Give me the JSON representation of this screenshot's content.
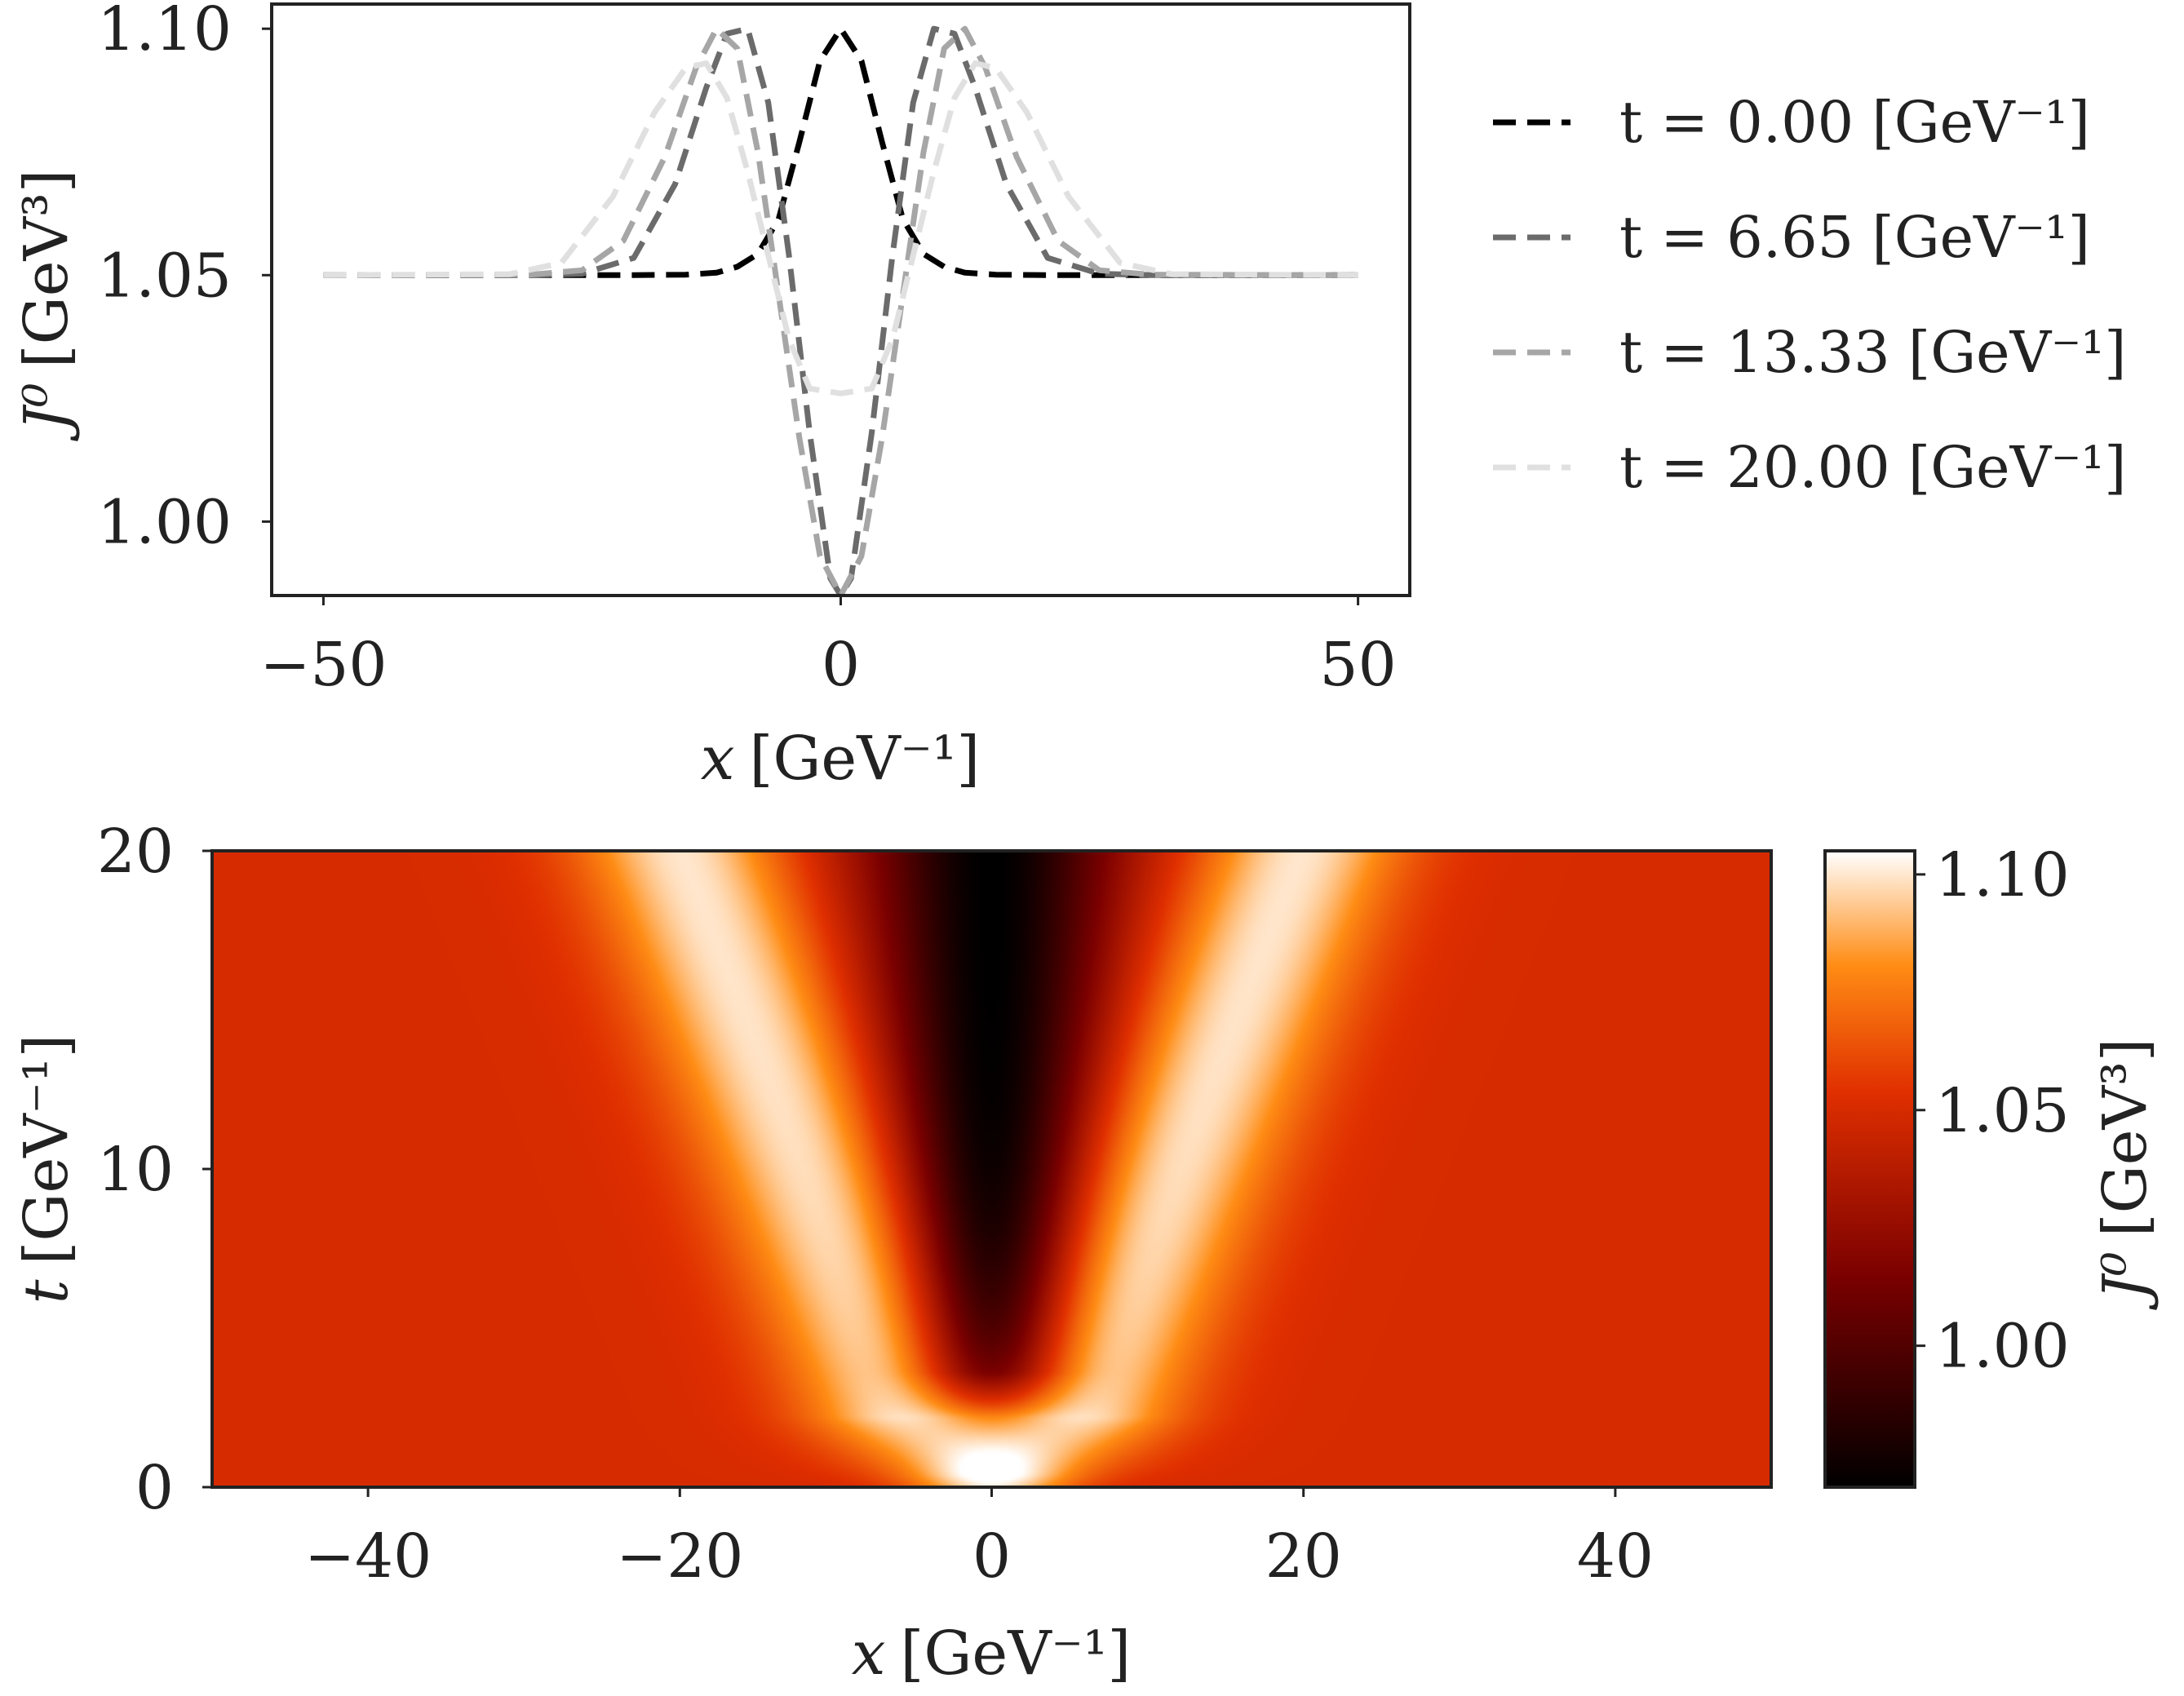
{
  "chart_data": [
    {
      "type": "line",
      "xlabel_var": "x",
      "xlabel_unit": "[GeV⁻¹]",
      "ylabel_var": "J⁰",
      "ylabel_unit": "[GeV³]",
      "xlim": [
        -55,
        55
      ],
      "ylim": [
        0.985,
        1.105
      ],
      "xticks": [
        -50,
        0,
        50
      ],
      "xtick_labels": [
        "−50",
        "0",
        "50"
      ],
      "yticks": [
        1.0,
        1.05,
        1.1
      ],
      "ytick_labels": [
        "1.00",
        "1.05",
        "1.10"
      ],
      "legend_position": "right",
      "grid": false,
      "series": [
        {
          "name": "t = 0.00 [GeV⁻¹]",
          "color": "#000000",
          "x": [
            -50,
            -30,
            -20,
            -15,
            -12,
            -10,
            -8,
            -6,
            -4,
            -2,
            0,
            2,
            4,
            6,
            8,
            10,
            12,
            15,
            20,
            30,
            50
          ],
          "y": [
            1.05,
            1.05,
            1.05,
            1.0501,
            1.0505,
            1.0517,
            1.0543,
            1.0614,
            1.077,
            1.0935,
            1.1,
            1.0935,
            1.077,
            1.0614,
            1.0543,
            1.0517,
            1.0505,
            1.0501,
            1.05,
            1.05,
            1.05
          ]
        },
        {
          "name": "t = 6.65 [GeV⁻¹]",
          "color": "#6b6b6b",
          "x": [
            -50,
            -30,
            -25,
            -20,
            -16,
            -13,
            -11,
            -9,
            -7,
            -5,
            -3,
            -1,
            0,
            1,
            3,
            5,
            7,
            9,
            11,
            13,
            16,
            20,
            25,
            30,
            50
          ],
          "y": [
            1.05,
            1.05,
            1.0503,
            1.0535,
            1.0685,
            1.088,
            1.099,
            1.1,
            1.085,
            1.054,
            1.018,
            0.9885,
            0.985,
            0.9885,
            1.018,
            1.054,
            1.085,
            1.1,
            1.099,
            1.088,
            1.0685,
            1.0535,
            1.0503,
            1.05,
            1.05
          ]
        },
        {
          "name": "t = 13.33 [GeV⁻¹]",
          "color": "#a6a6a6",
          "x": [
            -50,
            -30,
            -25,
            -21,
            -17,
            -14,
            -12,
            -10,
            -8,
            -6,
            -4,
            -2,
            0,
            2,
            4,
            6,
            8,
            10,
            12,
            14,
            17,
            21,
            25,
            30,
            50
          ],
          "y": [
            1.05,
            1.0501,
            1.051,
            1.057,
            1.074,
            1.092,
            1.1,
            1.096,
            1.075,
            1.046,
            1.017,
            0.993,
            0.985,
            0.993,
            1.017,
            1.046,
            1.075,
            1.096,
            1.1,
            1.092,
            1.074,
            1.057,
            1.051,
            1.0501,
            1.05
          ]
        },
        {
          "name": "t = 20.00 [GeV⁻¹]",
          "color": "#e0e0e0",
          "x": [
            -50,
            -32,
            -27,
            -22,
            -18,
            -15,
            -13,
            -11,
            -9,
            -7,
            -5,
            -3,
            0,
            3,
            5,
            7,
            9,
            11,
            13,
            15,
            18,
            22,
            27,
            32,
            50
          ],
          "y": [
            1.05,
            1.0502,
            1.0525,
            1.066,
            1.083,
            1.092,
            1.093,
            1.086,
            1.071,
            1.054,
            1.037,
            1.027,
            1.026,
            1.027,
            1.037,
            1.054,
            1.071,
            1.086,
            1.093,
            1.092,
            1.083,
            1.066,
            1.0525,
            1.0502,
            1.05
          ]
        }
      ]
    },
    {
      "type": "heatmap",
      "xlabel_var": "x",
      "xlabel_unit": "[GeV⁻¹]",
      "ylabel_var": "t",
      "ylabel_unit": "[GeV⁻¹]",
      "xlim": [
        -50,
        50
      ],
      "ylim": [
        0,
        20
      ],
      "xticks": [
        -40,
        -20,
        0,
        20,
        40
      ],
      "xtick_labels": [
        "−40",
        "−20",
        "0",
        "20",
        "40"
      ],
      "yticks": [
        0,
        10,
        20
      ],
      "ytick_labels": [
        "0",
        "10",
        "20"
      ],
      "colorbar": {
        "label_var": "J⁰",
        "label_unit": "[GeV³]",
        "range": [
          0.97,
          1.105
        ],
        "ticks": [
          1.0,
          1.05,
          1.1
        ],
        "tick_labels": [
          "1.00",
          "1.05",
          "1.10"
        ],
        "colormap": "gist_heat",
        "colors": [
          "#000000",
          "#8a0000",
          "#e02f00",
          "#ff8a14",
          "#ffffff"
        ]
      },
      "field": {
        "background": 1.05,
        "central_peak": {
          "amplitude": 0.05,
          "width": 3.6
        },
        "side_peaks": {
          "amplitude": 0.05,
          "speed": 0.82,
          "start": 3.5,
          "width": 4.8
        },
        "dip": {
          "amplitude": -0.08,
          "width_at_t0": 3.0,
          "width_growth": 0.14
        }
      }
    }
  ]
}
